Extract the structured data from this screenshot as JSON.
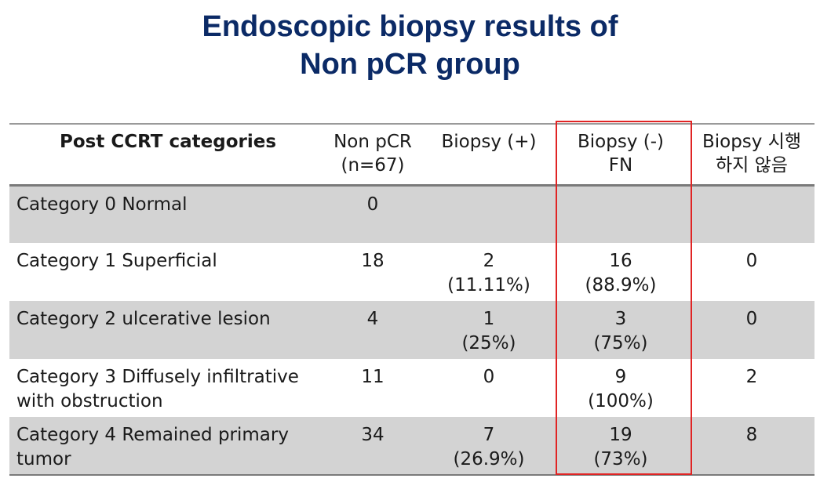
{
  "title": {
    "line1": "Endoscopic biopsy results of",
    "line2": "Non pCR group"
  },
  "table": {
    "headers": {
      "category": "Post CCRT categories",
      "non_pcr": "Non pCR",
      "non_pcr_n": "(n=67)",
      "biopsy_pos": "Biopsy  (+)",
      "biopsy_neg": "Biopsy  (-)",
      "biopsy_neg_sub": "FN",
      "not_done": "Biopsy 시행",
      "not_done_sub": "하지 않음"
    },
    "rows": [
      {
        "category": "Category 0 Normal",
        "category2": "",
        "non_pcr": "0",
        "pos": "",
        "pos_pct": "",
        "neg": "",
        "neg_pct": "",
        "not_done": ""
      },
      {
        "category": "Category 1 Superficial",
        "category2": "",
        "non_pcr": "18",
        "pos": "2",
        "pos_pct": "(11.11%)",
        "neg": "16",
        "neg_pct": "(88.9%)",
        "not_done": "0"
      },
      {
        "category": "Category 2 ulcerative lesion",
        "category2": "",
        "non_pcr": "4",
        "pos": "1",
        "pos_pct": "(25%)",
        "neg": "3",
        "neg_pct": "(75%)",
        "not_done": "0"
      },
      {
        "category": "Category 3 Diffusely infiltrative",
        "category2": "with obstruction",
        "non_pcr": "11",
        "pos": "0",
        "pos_pct": "",
        "neg": "9",
        "neg_pct": "(100%)",
        "not_done": "2"
      },
      {
        "category": "Category 4 Remained primary",
        "category2": "tumor",
        "non_pcr": "34",
        "pos": "7",
        "pos_pct": "(26.9%)",
        "neg": "19",
        "neg_pct": "(73%)",
        "not_done": "8"
      }
    ]
  },
  "colors": {
    "title": "#0b2a66",
    "row_shade": "#d3d3d3",
    "highlight_box": "#e02424"
  }
}
